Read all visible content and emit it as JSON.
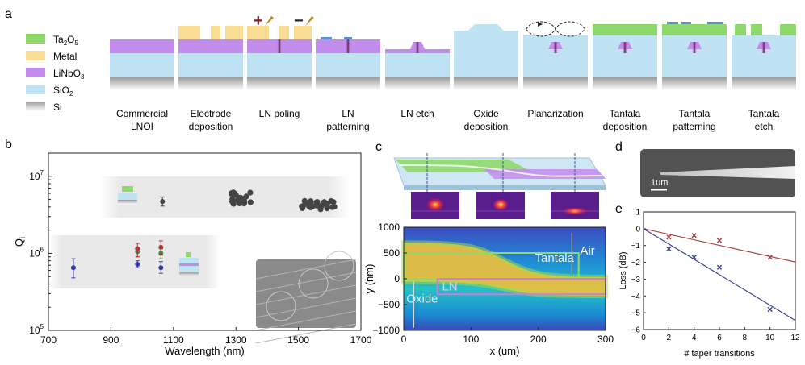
{
  "panel_labels": {
    "a": "a",
    "b": "b",
    "c": "c",
    "d": "d",
    "e": "e"
  },
  "colors": {
    "ta2o5": "#8fd86b",
    "metal": "#f9dd95",
    "linbo3": "#c28cec",
    "sio2": "#bfe3f3",
    "si": "#9a9a9a",
    "poling": "#6d2326",
    "blue_series": "#343c96",
    "red_series": "#a83a3a",
    "green_series": "#3f8a3f",
    "cluster": "#444444"
  },
  "legend": [
    {
      "key": "ta2o5",
      "base": "Ta",
      "sub1": "2",
      "mid": "O",
      "sub2": "5"
    },
    {
      "key": "metal",
      "base": "Metal"
    },
    {
      "key": "linbo3",
      "base": "LiNbO",
      "sub1": "3"
    },
    {
      "key": "sio2",
      "base": "SiO",
      "sub1": "2"
    },
    {
      "key": "si",
      "base": "Si"
    }
  ],
  "process_steps": [
    {
      "line1": "Commercial",
      "line2": "LNOI"
    },
    {
      "line1": "Electrode",
      "line2": "deposition"
    },
    {
      "line1": "LN poling",
      "line2": ""
    },
    {
      "line1": "LN",
      "line2": "patterning"
    },
    {
      "line1": "LN etch",
      "line2": ""
    },
    {
      "line1": "Oxide",
      "line2": "deposition"
    },
    {
      "line1": "Planarization",
      "line2": ""
    },
    {
      "line1": "Tantala",
      "line2": "deposition"
    },
    {
      "line1": "Tantala",
      "line2": "patterning"
    },
    {
      "line1": "Tantala",
      "line2": "etch"
    }
  ],
  "poling_signs": {
    "plus": "+",
    "minus": "−"
  },
  "chart_data": [
    {
      "id": "b",
      "type": "scatter",
      "xlabel": "Wavelength (nm)",
      "ylabel": "Q",
      "ylabel_sub": "i",
      "xlim": [
        700,
        1700
      ],
      "ylim": [
        100000,
        20000000
      ],
      "yscale": "log",
      "xticks": [
        "700",
        "900",
        "1100",
        "1300",
        "1500",
        "1700"
      ],
      "yticks": [
        {
          "base": "10",
          "exp": "5"
        },
        {
          "base": "10",
          "exp": "6"
        },
        {
          "base": "10",
          "exp": "7"
        }
      ],
      "series": [
        {
          "name": "LN (blue)",
          "color": "#343c96",
          "points": [
            [
              780,
              650000
            ],
            [
              985,
              720000
            ],
            [
              1060,
              650000
            ]
          ],
          "err": [
            [
              480000,
              850000
            ],
            [
              650000,
              800000
            ],
            [
              550000,
              780000
            ]
          ]
        },
        {
          "name": "Tantala on LN (green)",
          "color": "#3f8a3f",
          "points": [
            [
              985,
              1050000
            ],
            [
              1060,
              1000000
            ]
          ],
          "err": [
            [
              900000,
              1150000
            ],
            [
              850000,
              1150000
            ]
          ]
        },
        {
          "name": "red",
          "color": "#a83a3a",
          "points": [
            [
              985,
              1150000
            ],
            [
              1060,
              1200000
            ]
          ],
          "err": [
            [
              900000,
              1350000
            ],
            [
              950000,
              1450000
            ]
          ]
        },
        {
          "name": "Tantala (gray)",
          "color": "#444444",
          "points": [
            [
              1065,
              4700000
            ]
          ],
          "err": [
            [
              4100000,
              5400000
            ]
          ]
        }
      ],
      "clusters": [
        {
          "x_range": [
            1280,
            1350
          ],
          "y_range": [
            4300000,
            6200000
          ]
        },
        {
          "x_range": [
            1510,
            1620
          ],
          "y_range": [
            3700000,
            4800000
          ]
        }
      ]
    },
    {
      "id": "c",
      "type": "heatmap",
      "xlabel": "x (um)",
      "ylabel": "y (nm)",
      "xlim": [
        0,
        300
      ],
      "ylim": [
        -1000,
        1000
      ],
      "xticks": [
        "0",
        "100",
        "200",
        "300"
      ],
      "yticks": [
        "−1000",
        "−500",
        "0",
        "500",
        "1000"
      ],
      "region_labels": {
        "tantala": "Tantala",
        "air": "Air",
        "ln": "LN",
        "oxide": "Oxide"
      }
    },
    {
      "id": "e",
      "type": "scatter",
      "xlabel": "# taper transitions",
      "ylabel": "Loss (dB)",
      "xlim": [
        0,
        12
      ],
      "ylim": [
        -6,
        1
      ],
      "xticks": [
        "0",
        "2",
        "4",
        "6",
        "8",
        "10",
        "12"
      ],
      "yticks": [
        "1",
        "0",
        "−1",
        "−2",
        "−3",
        "−4",
        "−5",
        "−6"
      ],
      "series": [
        {
          "name": "red",
          "color": "#a83a3a",
          "points": [
            [
              2,
              -0.5
            ],
            [
              4,
              -0.4
            ],
            [
              6,
              -0.7
            ],
            [
              10,
              -1.7
            ]
          ],
          "fit_slope": -0.165
        },
        {
          "name": "blue",
          "color": "#343c96",
          "points": [
            [
              2,
              -1.2
            ],
            [
              4,
              -1.7
            ],
            [
              6,
              -2.3
            ],
            [
              10,
              -4.8
            ]
          ],
          "fit_slope": -0.455
        }
      ]
    }
  ],
  "sem_scalebar": "1um"
}
